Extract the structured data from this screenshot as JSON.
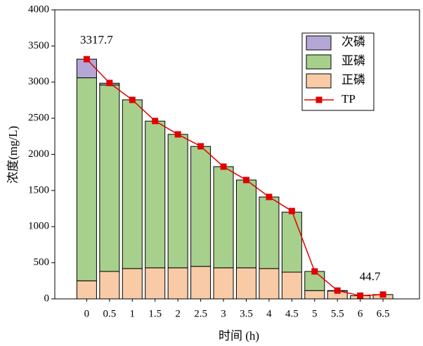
{
  "chart_data": {
    "type": "bar",
    "x_label": "时间 (h)",
    "y_label": "浓度(mg/L)",
    "x": [
      0,
      0.5,
      1,
      1.5,
      2,
      2.5,
      3,
      3.5,
      4,
      4.5,
      5,
      5.5,
      6,
      6.5
    ],
    "xlim": [
      -0.7,
      7.3
    ],
    "xticks": [
      0,
      0.5,
      1,
      1.5,
      2,
      2.5,
      3,
      3.5,
      4,
      4.5,
      5,
      5.5,
      6,
      6.5
    ],
    "ylim": [
      0,
      4000
    ],
    "yticks": [
      0,
      500,
      1000,
      1500,
      2000,
      2500,
      3000,
      3500,
      4000
    ],
    "legend": "upper right",
    "series": [
      {
        "name": "正磷",
        "color": "#f8cba6",
        "values": [
          250,
          380,
          420,
          430,
          430,
          450,
          430,
          430,
          420,
          370,
          115,
          110,
          44.7,
          60
        ]
      },
      {
        "name": "亚磷",
        "color": "#a8d08d",
        "values": [
          2810,
          2580,
          2335,
          2030,
          1847,
          1660,
          1400,
          1215,
          990,
          830,
          265,
          5,
          0,
          0
        ]
      },
      {
        "name": "次磷",
        "color": "#b4a7d6",
        "values": [
          257.7,
          25,
          0,
          0,
          0,
          0,
          0,
          0,
          0,
          0,
          0,
          0,
          0,
          0
        ]
      },
      {
        "name": "TP",
        "type": "line",
        "color": "#e00000",
        "values": [
          3317.7,
          2988,
          2754,
          2462,
          2277,
          2112,
          1830,
          1645,
          1411,
          1216,
          380,
          115,
          44.7,
          60
        ],
        "value_labels": [
          "3317.7",
          null,
          null,
          null,
          null,
          null,
          null,
          null,
          null,
          null,
          null,
          null,
          "44.7",
          null
        ]
      }
    ]
  }
}
